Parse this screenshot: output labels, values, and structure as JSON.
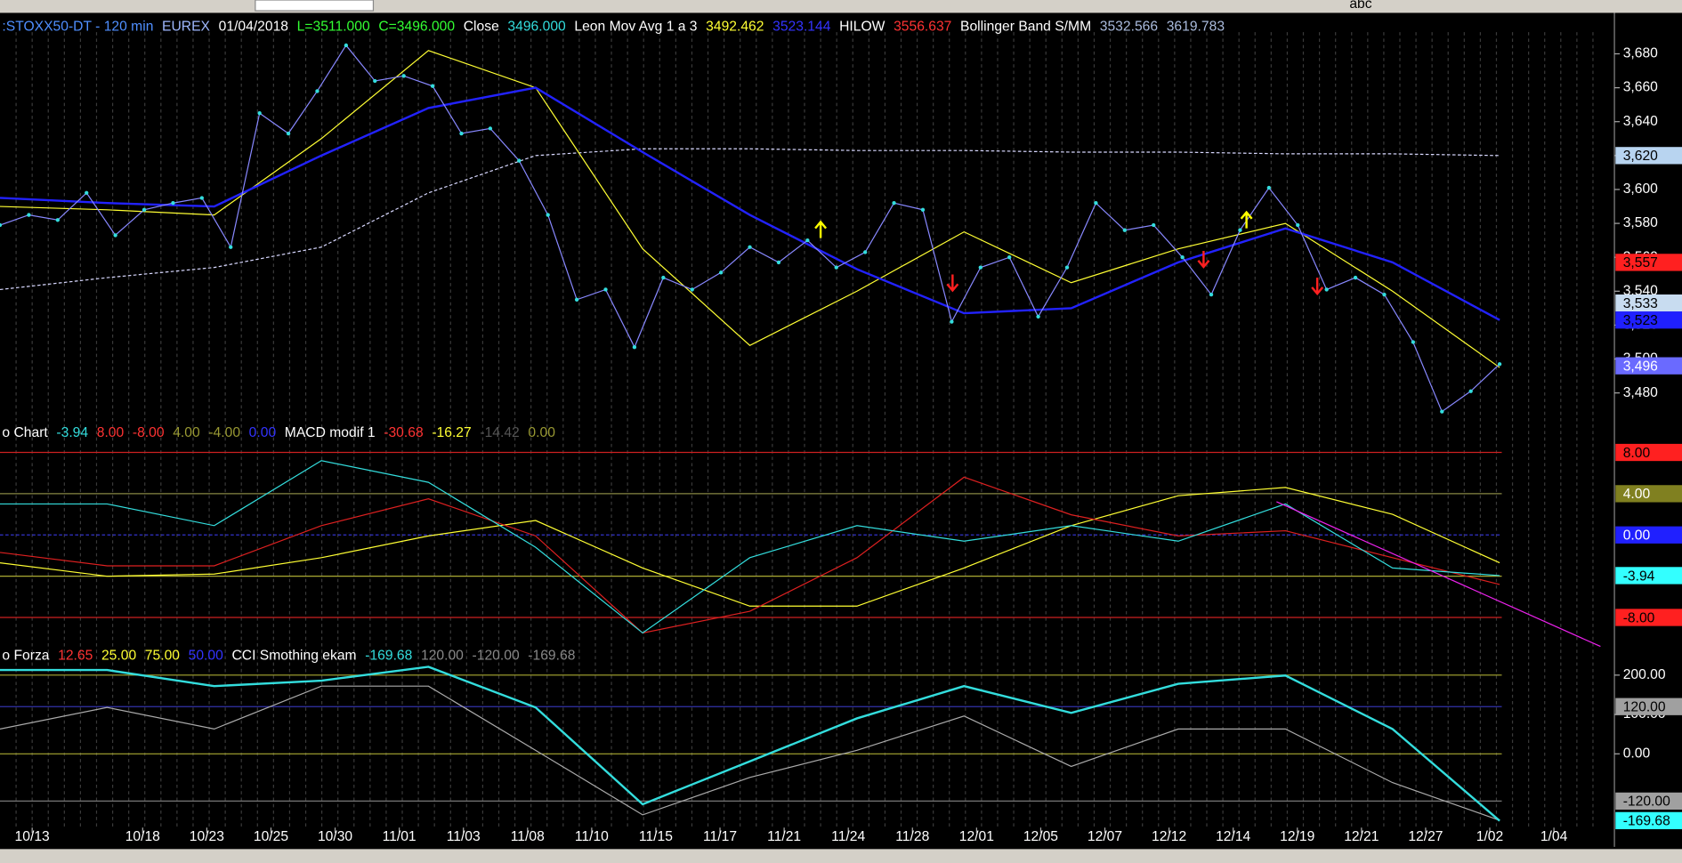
{
  "toolbar": {
    "text": "abc"
  },
  "panels": [
    {
      "header": [
        {
          "text": ":STOXX50-DT - 120 min",
          "color": "#4f8fff"
        },
        {
          "text": "EUREX",
          "color": "#9fb8ff"
        },
        {
          "text": "01/04/2018",
          "color": "#ffffff"
        },
        {
          "text": "L=3511.000",
          "color": "#33ff33"
        },
        {
          "text": "C=3496.000",
          "color": "#33ff33"
        },
        {
          "text": "Close",
          "color": "#ffffff"
        },
        {
          "text": "3496.000",
          "color": "#33dddd"
        },
        {
          "text": "Leon Mov Avg 1 a 3",
          "color": "#ffffff"
        },
        {
          "text": "3492.462",
          "color": "#ffff33"
        },
        {
          "text": "3523.144",
          "color": "#3333ff"
        },
        {
          "text": "HILOW",
          "color": "#ffffff"
        },
        {
          "text": "3556.637",
          "color": "#ff3333"
        },
        {
          "text": "Bollinger Band S/MM",
          "color": "#ffffff"
        },
        {
          "text": "3532.566",
          "color": "#aabbdd"
        },
        {
          "text": "3619.783",
          "color": "#aabbdd"
        }
      ],
      "ylim": [
        3462,
        3701
      ],
      "yticks": [
        {
          "value": 3480,
          "label": "3,480"
        },
        {
          "value": 3500,
          "label": "3,500"
        },
        {
          "value": 3520,
          "label": "3,520"
        },
        {
          "value": 3540,
          "label": "3,540"
        },
        {
          "value": 3560,
          "label": "3,560"
        },
        {
          "value": 3580,
          "label": "3,580"
        },
        {
          "value": 3600,
          "label": "3,600"
        },
        {
          "value": 3620,
          "label": "3,620"
        },
        {
          "value": 3640,
          "label": "3,640"
        },
        {
          "value": 3660,
          "label": "3,660"
        },
        {
          "value": 3680,
          "label": "3,680"
        }
      ],
      "levels": [],
      "boxes": [
        {
          "value": 3620,
          "label": "3,620",
          "bg": "#b8d4f0",
          "fg": "#000000"
        },
        {
          "value": 3557,
          "label": "3,557",
          "bg": "#ff2020",
          "fg": "#000000"
        },
        {
          "value": 3533,
          "label": "3,533",
          "bg": "#c8dcf0",
          "fg": "#000000"
        },
        {
          "value": 3523,
          "label": "3,523",
          "bg": "#2020ff",
          "fg": "#000000"
        },
        {
          "value": 3496,
          "label": "3,496",
          "bg": "#6a6aff",
          "fg": "#ffffff"
        }
      ],
      "series": [
        {
          "color": "#d8d8ff",
          "dash": "3,2",
          "width": 1,
          "values": [
            3541,
            3548,
            3554,
            3566,
            3598,
            3620,
            3624,
            3624,
            3623,
            3623,
            3622,
            3622,
            3621,
            3621,
            3620
          ]
        },
        {
          "color": "#ffff33",
          "dash": "",
          "width": 1,
          "values": [
            3590,
            3588,
            3585,
            3630,
            3682,
            3660,
            3565,
            3508,
            3540,
            3575,
            3545,
            3565,
            3580,
            3540,
            3495
          ]
        },
        {
          "color": "#2222ff",
          "dash": "",
          "width": 2,
          "values": [
            3595,
            3592,
            3590,
            3620,
            3648,
            3660,
            3622,
            3585,
            3553,
            3527,
            3530,
            3557,
            3577,
            3557,
            3523
          ]
        },
        {
          "color": "#8888ff",
          "dash": "",
          "width": 1,
          "dots": "#33dddd",
          "values": [
            3579,
            3585,
            3582,
            3598,
            3573,
            3588,
            3592,
            3595,
            3566,
            3645,
            3633,
            3658,
            3685,
            3664,
            3667,
            3661,
            3633,
            3636,
            3617,
            3585,
            3535,
            3541,
            3507,
            3548,
            3541,
            3551,
            3566,
            3557,
            3570,
            3554,
            3563,
            3592,
            3588,
            3522,
            3554,
            3560,
            3525,
            3554,
            3592,
            3576,
            3579,
            3560,
            3538,
            3576,
            3601,
            3579,
            3541,
            3548,
            3538,
            3510,
            3469,
            3481,
            3497
          ]
        }
      ]
    },
    {
      "header": [
        {
          "text": "o Chart",
          "color": "#ffffff"
        },
        {
          "text": "-3.94",
          "color": "#33dddd"
        },
        {
          "text": "8.00",
          "color": "#ff3333"
        },
        {
          "text": "-8.00",
          "color": "#ff3333"
        },
        {
          "text": "4.00",
          "color": "#999933"
        },
        {
          "text": "-4.00",
          "color": "#999933"
        },
        {
          "text": "0.00",
          "color": "#3333ff"
        },
        {
          "text": "MACD modif 1",
          "color": "#ffffff"
        },
        {
          "text": "-30.68",
          "color": "#ff3333"
        },
        {
          "text": "-16.27",
          "color": "#ffff33"
        },
        {
          "text": "-14.42",
          "color": "#555555"
        },
        {
          "text": "0.00",
          "color": "#999933"
        }
      ],
      "ylim": [
        -10.5,
        9.25
      ],
      "yticks": [],
      "levels": [
        {
          "value": 8,
          "color": "#cc2020",
          "dash": ""
        },
        {
          "value": 4,
          "color": "#888844",
          "dash": ""
        },
        {
          "value": 0,
          "color": "#3333cc",
          "dash": "3,2"
        },
        {
          "value": -4,
          "color": "#aaaa33",
          "dash": ""
        },
        {
          "value": -8,
          "color": "#cc2020",
          "dash": ""
        }
      ],
      "boxes": [
        {
          "value": 8,
          "label": "8.00",
          "bg": "#ff2020",
          "fg": "#000000"
        },
        {
          "value": 4,
          "label": "4.00",
          "bg": "#808020",
          "fg": "#ffffff"
        },
        {
          "value": 0,
          "label": "0.00",
          "bg": "#2020ff",
          "fg": "#ffffff"
        },
        {
          "value": -3.94,
          "label": "-3.94",
          "bg": "#33ffff",
          "fg": "#000000"
        },
        {
          "value": -8,
          "label": "-8.00",
          "bg": "#ff2020",
          "fg": "#000000"
        }
      ],
      "series": [
        {
          "color": "#ffff33",
          "dash": "",
          "width": 1,
          "values": [
            -2.7,
            -4.0,
            -3.8,
            -2.2,
            -0.1,
            1.4,
            -3.2,
            -6.9,
            -6.9,
            -3.2,
            0.9,
            3.8,
            4.6,
            2.0,
            -2.7
          ]
        },
        {
          "color": "#dd2020",
          "dash": "",
          "width": 1,
          "values": [
            -1.7,
            -3.0,
            -3.0,
            0.9,
            3.5,
            -0.1,
            -9.5,
            -7.4,
            -2.2,
            5.6,
            1.95,
            -0.1,
            0.4,
            -2.2,
            -4.8
          ]
        },
        {
          "color": "#33dddd",
          "dash": "",
          "width": 1,
          "values": [
            3.0,
            3.0,
            0.9,
            7.2,
            5.1,
            -1.2,
            -9.5,
            -2.2,
            0.9,
            -0.6,
            0.9,
            -0.6,
            3.0,
            -3.2,
            -3.94
          ]
        }
      ]
    },
    {
      "header": [
        {
          "text": "o Forza",
          "color": "#ffffff"
        },
        {
          "text": "12.65",
          "color": "#ff3333"
        },
        {
          "text": "25.00",
          "color": "#ffff33"
        },
        {
          "text": "75.00",
          "color": "#ffff33"
        },
        {
          "text": "50.00",
          "color": "#3333ff"
        },
        {
          "text": "CCI Smothing ekam",
          "color": "#ffffff"
        },
        {
          "text": "-169.68",
          "color": "#33dddd"
        },
        {
          "text": "120.00",
          "color": "#888888"
        },
        {
          "text": "-120.00",
          "color": "#888888"
        },
        {
          "text": "-169.68",
          "color": "#888888"
        }
      ],
      "ylim": [
        -182,
        232
      ],
      "yticks": [
        {
          "value": 200,
          "label": "200.00"
        },
        {
          "value": 100,
          "label": "100.00"
        },
        {
          "value": 0,
          "label": "0.00"
        }
      ],
      "levels": [
        {
          "value": 200,
          "color": "#aaaa33",
          "dash": ""
        },
        {
          "value": 120,
          "color": "#3333aa",
          "dash": ""
        },
        {
          "value": 0,
          "color": "#aaaa33",
          "dash": ""
        },
        {
          "value": -120,
          "color": "#777777",
          "dash": ""
        }
      ],
      "boxes": [
        {
          "value": 120,
          "label": "120.00",
          "bg": "#a0a0a0",
          "fg": "#000000"
        },
        {
          "value": -120,
          "label": "-120.00",
          "bg": "#a0a0a0",
          "fg": "#000000"
        },
        {
          "value": -169.68,
          "label": "-169.68",
          "bg": "#33ffff",
          "fg": "#000000"
        }
      ],
      "series": [
        {
          "color": "#aaaaaa",
          "dash": "",
          "width": 1,
          "values": [
            63,
            118,
            63,
            172,
            172,
            9,
            -155,
            -60,
            9,
            96,
            -32,
            63,
            63,
            -73,
            -169
          ]
        },
        {
          "color": "#33dddd",
          "dash": "",
          "width": 2,
          "values": [
            213,
            213,
            172,
            186,
            221,
            118,
            -128,
            -19,
            90,
            172,
            104,
            178,
            199,
            63,
            -170
          ]
        }
      ]
    }
  ],
  "xaxis": {
    "labels": [
      "10/13",
      "10/18",
      "10/23",
      "10/25",
      "10/30",
      "11/01",
      "11/03",
      "11/08",
      "11/10",
      "11/15",
      "11/17",
      "11/21",
      "11/24",
      "11/28",
      "12/01",
      "12/05",
      "12/07",
      "12/12",
      "12/14",
      "12/19",
      "12/21",
      "12/27",
      "1/02",
      "1/04"
    ]
  }
}
